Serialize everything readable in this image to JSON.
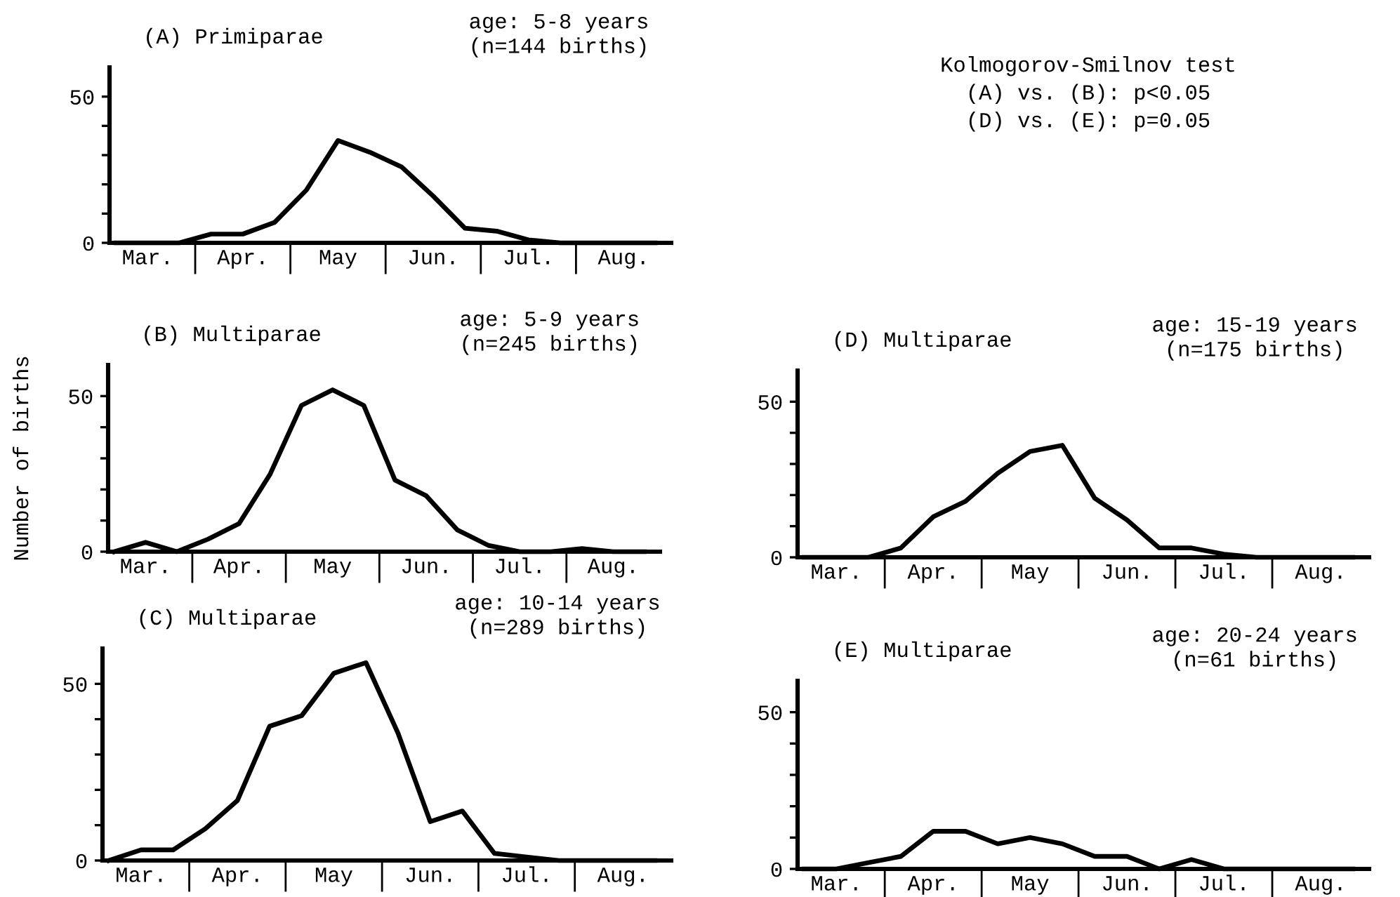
{
  "chart_data": [
    {
      "type": "line",
      "title": "(A) Primiparae",
      "subtitle": "age: 5-8 years\n(n=144 births)",
      "categories": [
        null,
        "Mar.",
        null,
        null,
        "Apr.",
        null,
        null,
        "May",
        null,
        null,
        "Jun.",
        null,
        null,
        "Jul.",
        null,
        null,
        "Aug.",
        null
      ],
      "series": [
        {
          "color": "#000000",
          "values": [
            0,
            0,
            0,
            3,
            3,
            7,
            18,
            35,
            31,
            26,
            16,
            5,
            4,
            1,
            0,
            0,
            0,
            0
          ]
        }
      ],
      "ylim": [
        0,
        60
      ],
      "yticks": [
        0,
        {
          "value": 10,
          "label": null
        },
        {
          "value": 20,
          "label": null
        },
        {
          "value": 30,
          "label": null
        },
        {
          "value": 40,
          "label": null
        },
        50
      ],
      "grid": false,
      "legend": false,
      "marker": "none",
      "line_style": "solid"
    },
    {
      "type": "other",
      "annotations": [
        "Kolmogorov-Smilnov test\n(A) vs. (B): p<0.05\n(D) vs. (E): p=0.05"
      ]
    },
    {
      "type": "line",
      "title": "(B) Multiparae",
      "subtitle": "age: 5-9 years\n(n=245 births)",
      "ylabel": "Number of births",
      "categories": [
        null,
        "Mar.",
        null,
        null,
        "Apr.",
        null,
        null,
        "May",
        null,
        null,
        "Jun.",
        null,
        null,
        "Jul.",
        null,
        null,
        "Aug.",
        null
      ],
      "series": [
        {
          "color": "#000000",
          "values": [
            0,
            3,
            0,
            4,
            9,
            25,
            47,
            52,
            47,
            23,
            18,
            7,
            2,
            0,
            0,
            1,
            0,
            0
          ]
        }
      ],
      "ylim": [
        0,
        60
      ],
      "yticks": [
        0,
        {
          "value": 10,
          "label": null
        },
        {
          "value": 20,
          "label": null
        },
        {
          "value": 30,
          "label": null
        },
        {
          "value": 40,
          "label": null
        },
        50
      ],
      "grid": false,
      "legend": false,
      "marker": "none",
      "line_style": "solid"
    },
    {
      "type": "line",
      "title": "(D) Multiparae",
      "subtitle": "age: 15-19 years\n(n=175 births)",
      "categories": [
        null,
        "Mar.",
        null,
        null,
        "Apr.",
        null,
        null,
        "May",
        null,
        null,
        "Jun.",
        null,
        null,
        "Jul.",
        null,
        null,
        "Aug.",
        null
      ],
      "series": [
        {
          "color": "#000000",
          "values": [
            0,
            0,
            0,
            3,
            13,
            18,
            27,
            34,
            36,
            19,
            12,
            3,
            3,
            1,
            0,
            0,
            0,
            0
          ]
        }
      ],
      "ylim": [
        0,
        60
      ],
      "yticks": [
        0,
        {
          "value": 10,
          "label": null
        },
        {
          "value": 20,
          "label": null
        },
        {
          "value": 30,
          "label": null
        },
        {
          "value": 40,
          "label": null
        },
        50
      ],
      "grid": false,
      "legend": false,
      "marker": "none",
      "line_style": "solid"
    },
    {
      "type": "line",
      "title": "(C) Multiparae",
      "subtitle": "age: 10-14 years\n(n=289 births)",
      "categories": [
        null,
        "Mar.",
        null,
        null,
        "Apr.",
        null,
        null,
        "May",
        null,
        null,
        "Jun.",
        null,
        null,
        "Jul.",
        null,
        null,
        "Aug.",
        null
      ],
      "series": [
        {
          "color": "#000000",
          "values": [
            0,
            3,
            3,
            9,
            17,
            38,
            41,
            53,
            56,
            36,
            11,
            14,
            2,
            1,
            0,
            0,
            0,
            0
          ]
        }
      ],
      "ylim": [
        0,
        60
      ],
      "yticks": [
        0,
        {
          "value": 10,
          "label": null
        },
        {
          "value": 20,
          "label": null
        },
        {
          "value": 30,
          "label": null
        },
        {
          "value": 40,
          "label": null
        },
        50
      ],
      "grid": false,
      "legend": false,
      "marker": "none",
      "line_style": "solid"
    },
    {
      "type": "line",
      "title": "(E) Multiparae",
      "subtitle": "age: 20-24 years\n(n=61 births)",
      "categories": [
        null,
        "Mar.",
        null,
        null,
        "Apr.",
        null,
        null,
        "May",
        null,
        null,
        "Jun.",
        null,
        null,
        "Jul.",
        null,
        null,
        "Aug.",
        null
      ],
      "series": [
        {
          "color": "#000000",
          "values": [
            0,
            0,
            2,
            4,
            12,
            12,
            8,
            10,
            8,
            4,
            4,
            0,
            3,
            0,
            0,
            0,
            0,
            0
          ]
        }
      ],
      "ylim": [
        0,
        60
      ],
      "yticks": [
        0,
        {
          "value": 10,
          "label": null
        },
        {
          "value": 20,
          "label": null
        },
        {
          "value": 30,
          "label": null
        },
        {
          "value": 40,
          "label": null
        },
        50
      ],
      "grid": false,
      "legend": false,
      "marker": "none",
      "line_style": "solid"
    }
  ]
}
